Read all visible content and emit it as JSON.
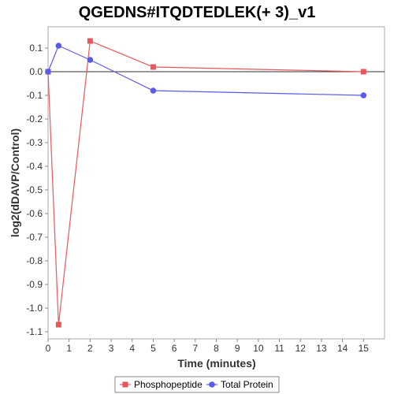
{
  "chart_data": {
    "type": "line",
    "title": "QGEDNS#ITQDTEDLEK(+ 3)_v1",
    "xlabel": "Time (minutes)",
    "ylabel": "log2(dDAVP/Control)",
    "xlim": [
      0,
      16
    ],
    "ylim": [
      -1.13,
      0.19
    ],
    "x_ticks": [
      0,
      1,
      2,
      3,
      4,
      5,
      6,
      7,
      8,
      9,
      10,
      11,
      12,
      13,
      14,
      15
    ],
    "y_ticks": [
      0.1,
      0.0,
      -0.1,
      -0.2,
      -0.3,
      -0.4,
      -0.5,
      -0.6,
      -0.7,
      -0.8,
      -0.9,
      -1.0,
      -1.1
    ],
    "x_tick_labels": [
      "0",
      "1",
      "2",
      "3",
      "4",
      "5",
      "6",
      "7",
      "8",
      "9",
      "10",
      "11",
      "12",
      "13",
      "14",
      "15"
    ],
    "y_tick_labels": [
      "0.1",
      "0.0",
      "-0.1",
      "-0.2",
      "-0.3",
      "-0.4",
      "-0.5",
      "-0.6",
      "-0.7",
      "-0.8",
      "-0.9",
      "-1.0",
      "-1.1"
    ],
    "zero_line": true,
    "grid": false,
    "legend_position": "bottom",
    "series": [
      {
        "name": "Phosphopeptide",
        "color": "#e8585a",
        "marker": "square",
        "x": [
          0,
          0.5,
          2,
          5,
          15
        ],
        "y": [
          0.0,
          -1.07,
          0.13,
          0.02,
          0.0
        ]
      },
      {
        "name": "Total Protein",
        "color": "#5a5ae8",
        "marker": "circle",
        "x": [
          0,
          0.5,
          2,
          5,
          15
        ],
        "y": [
          0.0,
          0.11,
          0.05,
          -0.08,
          -0.1
        ]
      }
    ]
  }
}
